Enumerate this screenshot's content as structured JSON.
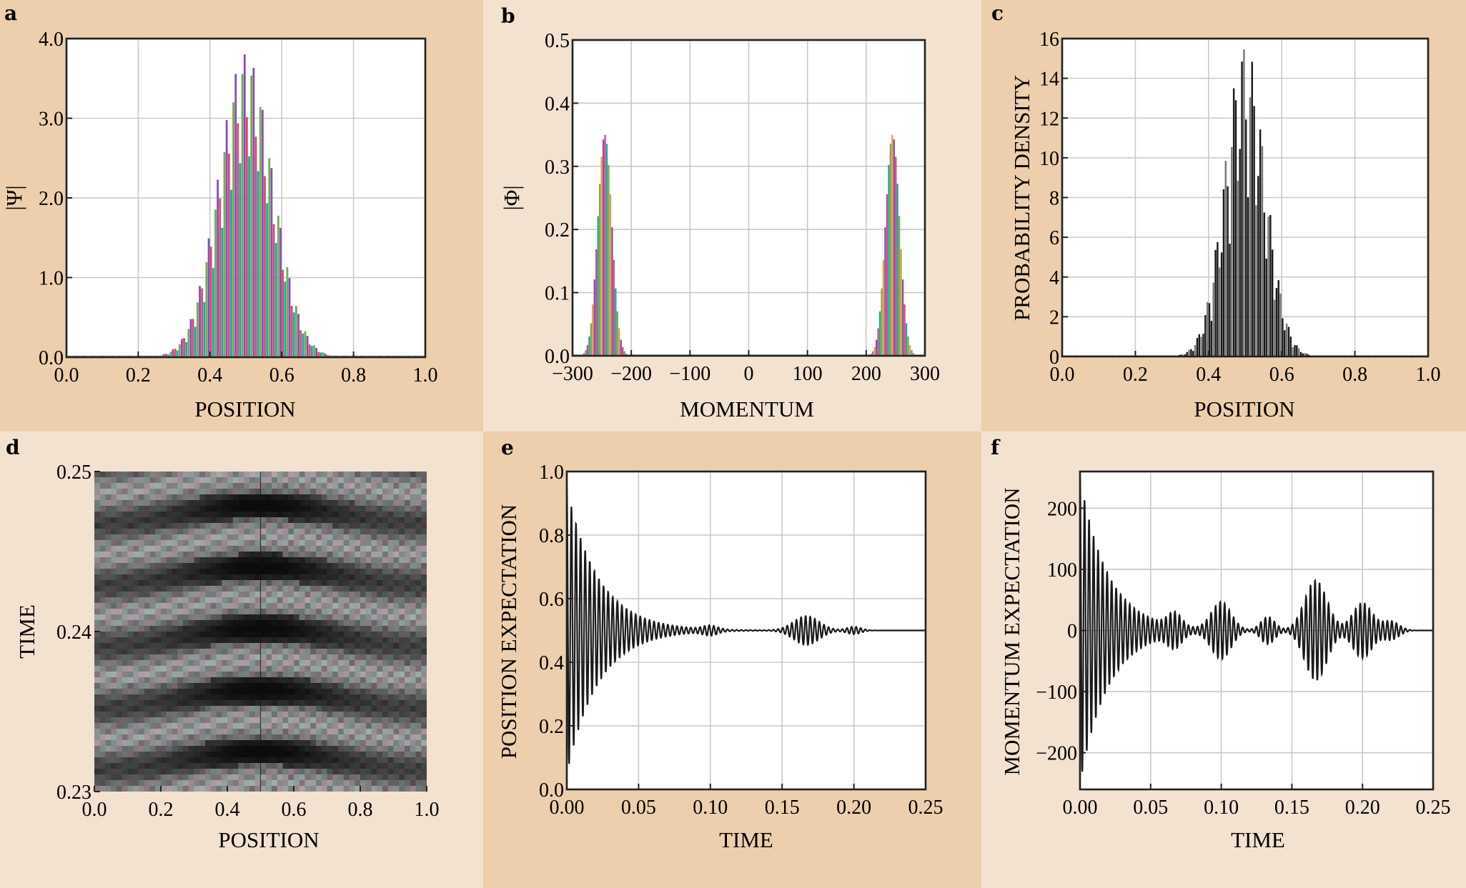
{
  "figure": {
    "colors": {
      "panel_dark": "#edcfad",
      "panel_light": "#f3e2d0",
      "bar_red": "#e0457a",
      "bar_teal": "#1aa9a2",
      "bar_green": "#6fae54",
      "bar_orange": "#ef9c3a",
      "bar_purple": "#8a4fb0",
      "ink": "#1a1a1a"
    }
  },
  "chart_data": [
    {
      "panel": "a",
      "type": "bar",
      "title": "",
      "xlabel": "POSITION",
      "ylabel": "|Ψ|",
      "xlim": [
        0.0,
        1.0
      ],
      "ylim": [
        0.0,
        4.0
      ],
      "xticks": [
        "0.0",
        "0.2",
        "0.4",
        "0.6",
        "0.8",
        "1.0"
      ],
      "yticks": [
        "0.0",
        "1.0",
        "2.0",
        "3.0",
        "4.0"
      ],
      "grid": true,
      "series": [
        {
          "name": "|Ψ| (multicolored bars)",
          "shape": "gaussian-oscillating",
          "center": 0.5,
          "sigma": 0.075,
          "peak": 3.85,
          "oscillation_count": 20
        }
      ]
    },
    {
      "panel": "b",
      "type": "bar",
      "title": "",
      "xlabel": "MOMENTUM",
      "ylabel": "|Φ|",
      "xlim": [
        -300,
        300
      ],
      "ylim": [
        0.0,
        0.5
      ],
      "xticks": [
        "−300",
        "−200",
        "−100",
        "0",
        "100",
        "200",
        "300"
      ],
      "yticks": [
        "0.0",
        "0.1",
        "0.2",
        "0.3",
        "0.4",
        "0.5"
      ],
      "grid": true,
      "series": [
        {
          "name": "peak at −245",
          "center": -245,
          "sigma": 12,
          "peak": 0.35
        },
        {
          "name": "peak at +245",
          "center": 245,
          "sigma": 12,
          "peak": 0.35
        }
      ]
    },
    {
      "panel": "c",
      "type": "bar",
      "title": "",
      "xlabel": "POSITION",
      "ylabel": "PROBABILITY DENSITY",
      "xlim": [
        0.0,
        1.0
      ],
      "ylim": [
        0,
        16
      ],
      "xticks": [
        "0.0",
        "0.2",
        "0.4",
        "0.6",
        "0.8",
        "1.0"
      ],
      "yticks": [
        "0",
        "2",
        "4",
        "6",
        "8",
        "10",
        "12",
        "14",
        "16"
      ],
      "grid": true,
      "series": [
        {
          "name": "|Ψ|²",
          "shape": "gaussian-oscillating",
          "center": 0.5,
          "sigma": 0.055,
          "peak": 15.8,
          "oscillation_count": 20
        }
      ]
    },
    {
      "panel": "d",
      "type": "heatmap",
      "title": "",
      "xlabel": "POSITION",
      "ylabel": "TIME",
      "xlim": [
        0.0,
        1.0
      ],
      "ylim": [
        0.23,
        0.25
      ],
      "xticks": [
        "0.0",
        "0.2",
        "0.4",
        "0.6",
        "0.8",
        "1.0"
      ],
      "yticks": [
        "0.23",
        "0.24",
        "0.25"
      ],
      "grid": false
    },
    {
      "panel": "e",
      "type": "line",
      "title": "",
      "xlabel": "TIME",
      "ylabel": "POSITION EXPECTATION",
      "xlim": [
        0.0,
        0.25
      ],
      "ylim": [
        0.0,
        1.0
      ],
      "xticks": [
        "0.00",
        "0.05",
        "0.10",
        "0.15",
        "0.20",
        "0.25"
      ],
      "yticks": [
        "0.0",
        "0.2",
        "0.4",
        "0.6",
        "0.8",
        "1.0"
      ],
      "grid": true,
      "series": [
        {
          "name": "⟨x⟩(t)",
          "baseline": 0.5,
          "initial_amplitude": 0.45,
          "decay_time": 0.022,
          "revival_bursts": [
            {
              "t": 0.1,
              "amplitude": 0.012,
              "width": 0.005
            },
            {
              "t": 0.167,
              "amplitude": 0.045,
              "width": 0.009
            },
            {
              "t": 0.2,
              "amplitude": 0.012,
              "width": 0.005
            }
          ]
        }
      ]
    },
    {
      "panel": "f",
      "type": "line",
      "title": "",
      "xlabel": "TIME",
      "ylabel": "MOMENTUM EXPECTATION",
      "xlim": [
        0.0,
        0.25
      ],
      "ylim": [
        -260,
        260
      ],
      "xticks": [
        "0.00",
        "0.05",
        "0.10",
        "0.15",
        "0.20",
        "0.25"
      ],
      "yticks": [
        "−200",
        "−100",
        "0",
        "100",
        "200"
      ],
      "grid": true,
      "series": [
        {
          "name": "⟨p⟩(t)",
          "baseline": 0,
          "initial_amplitude": 250,
          "decay_time": 0.02,
          "revival_bursts": [
            {
              "t": 0.067,
              "amplitude": 22,
              "width": 0.005
            },
            {
              "t": 0.1,
              "amplitude": 45,
              "width": 0.007
            },
            {
              "t": 0.133,
              "amplitude": 22,
              "width": 0.005
            },
            {
              "t": 0.167,
              "amplitude": 82,
              "width": 0.008
            },
            {
              "t": 0.2,
              "amplitude": 45,
              "width": 0.007
            },
            {
              "t": 0.22,
              "amplitude": 15,
              "width": 0.006
            }
          ]
        }
      ]
    }
  ]
}
